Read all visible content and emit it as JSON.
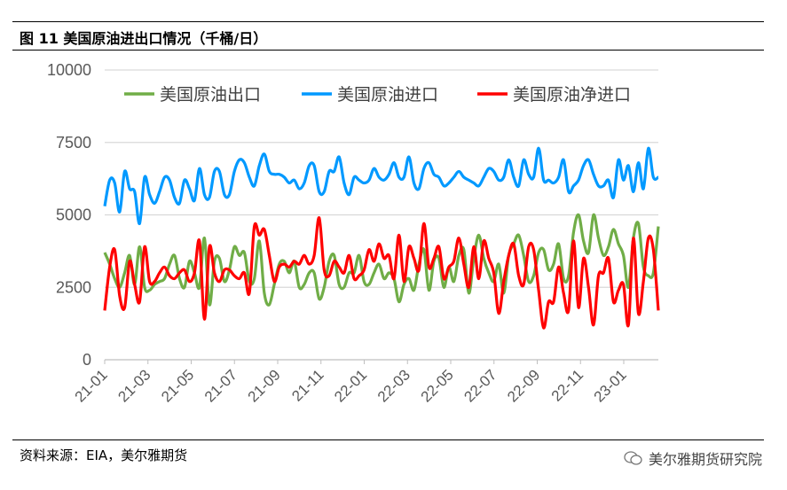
{
  "title": "图 11  美国原油进出口情况（千桶/日）",
  "source": "资料来源：EIA，美尔雅期货",
  "watermark": "美尔雅期货研究院",
  "chart_data": {
    "type": "line",
    "frequency": "weekly",
    "ylim": [
      0,
      10000
    ],
    "yticks": [
      "0",
      "2500",
      "5000",
      "7500",
      "10000"
    ],
    "xticks": [
      "21-01",
      "21-03",
      "21-05",
      "21-07",
      "21-09",
      "21-11",
      "22-01",
      "22-03",
      "22-05",
      "22-07",
      "22-09",
      "22-11",
      "23-01"
    ],
    "grid": true,
    "legend": "top",
    "series": [
      {
        "name": "美国原油出口",
        "color": "#70ad47",
        "values": [
          3700,
          3300,
          2800,
          2500,
          3000,
          3600,
          2600,
          3900,
          2500,
          2400,
          2600,
          2700,
          2800,
          3300,
          3600,
          2800,
          2500,
          3400,
          3000,
          2500,
          4200,
          1900,
          3400,
          3500,
          2700,
          3100,
          3900,
          3600,
          3700,
          2700,
          2800,
          4100,
          2300,
          1900,
          2600,
          3300,
          3400,
          3000,
          3400,
          2500,
          2600,
          3000,
          3000,
          2100,
          2500,
          3400,
          3600,
          2600,
          2500,
          3000,
          3000,
          3600,
          2700,
          2600,
          3000,
          3300,
          2800,
          3000,
          2800,
          2000,
          2600,
          2800,
          2400,
          3300,
          3800,
          2400,
          3400,
          3500,
          2500,
          3200,
          2700,
          3600,
          3800,
          2300,
          3500,
          4300,
          3500,
          3000,
          2700,
          3300,
          2300,
          3600,
          4000,
          4300,
          3600,
          2700,
          2900,
          3700,
          3800,
          3100,
          3300,
          4000,
          2800,
          2900,
          4400,
          5000,
          4100,
          3700,
          5000,
          4200,
          3600,
          3900,
          4500,
          4000,
          3600,
          2500,
          4200,
          4700,
          3200,
          2900,
          3000,
          4600
        ]
      },
      {
        "name": "美国原油进口",
        "color": "#0099ff",
        "values": [
          5300,
          6200,
          6100,
          5100,
          6500,
          5900,
          5800,
          4700,
          6300,
          5700,
          5400,
          5800,
          6300,
          6200,
          5600,
          5400,
          6200,
          5900,
          5500,
          6600,
          5700,
          5600,
          6500,
          6500,
          5700,
          5700,
          6500,
          6900,
          6800,
          6300,
          6000,
          6700,
          7100,
          6500,
          6400,
          6400,
          6300,
          6100,
          6200,
          5900,
          6100,
          6700,
          6700,
          5800,
          5800,
          6500,
          6500,
          7000,
          6100,
          5700,
          6300,
          6200,
          6100,
          6200,
          6600,
          6300,
          6200,
          6400,
          6800,
          6300,
          6300,
          7000,
          6100,
          5900,
          6600,
          6800,
          6400,
          6300,
          6000,
          6100,
          6300,
          6500,
          6300,
          6200,
          6100,
          6000,
          6300,
          6600,
          6500,
          6200,
          6300,
          6900,
          6300,
          6000,
          6900,
          6400,
          6300,
          7300,
          6200,
          6200,
          6100,
          6300,
          6900,
          5800,
          6000,
          6200,
          6700,
          6900,
          6400,
          6000,
          6000,
          6200,
          5600,
          6900,
          6200,
          6700,
          5800,
          6800,
          5900,
          7300,
          6300,
          6300
        ]
      },
      {
        "name": "美国原油净进口",
        "color": "#ff0000",
        "values": [
          1700,
          3200,
          3800,
          2200,
          1800,
          3400,
          2600,
          2000,
          3900,
          2700,
          2700,
          3000,
          3200,
          2900,
          2800,
          3000,
          3100,
          2700,
          3000,
          4100,
          1400,
          3900,
          3000,
          2700,
          3100,
          3100,
          2900,
          2800,
          3000,
          2300,
          4600,
          4300,
          4500,
          3600,
          2700,
          3200,
          3300,
          3200,
          3400,
          3300,
          3600,
          3300,
          3600,
          4900,
          3100,
          2900,
          3400,
          3200,
          3000,
          3600,
          2800,
          2900,
          3100,
          3800,
          3400,
          4000,
          3500,
          3600,
          2800,
          4300,
          2700,
          3900,
          3500,
          3100,
          4700,
          3200,
          3500,
          3900,
          2800,
          3200,
          3400,
          4200,
          3300,
          2500,
          3900,
          2800,
          4100,
          3500,
          3000,
          1600,
          2700,
          3600,
          4000,
          2900,
          2600,
          3900,
          3800,
          2400,
          1100,
          2000,
          2000,
          3200,
          2300,
          1700,
          4100,
          1800,
          3500,
          2500,
          1200,
          2900,
          3000,
          3500,
          2000,
          2400,
          2600,
          1200,
          4200,
          1600,
          2700,
          4200,
          3800,
          1700
        ]
      }
    ]
  }
}
